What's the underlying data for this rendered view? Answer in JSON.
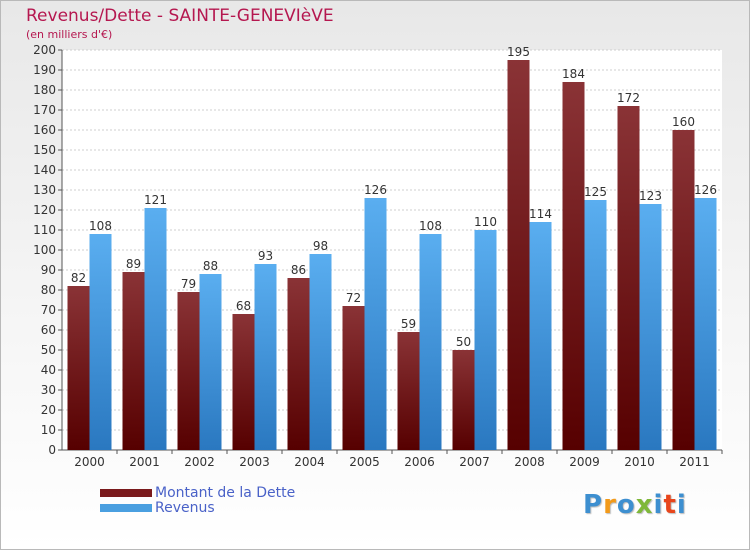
{
  "title": "Revenus/Dette - SAINTE-GENEVIèVE",
  "subtitle": "(en milliers d'€)",
  "colors": {
    "dette": "#7a1a1c",
    "revenus": "#4a9fe0",
    "title": "#b5174f",
    "legend_text": "#4a62c8"
  },
  "legend": {
    "dette_label": "Montant de la Dette",
    "revenus_label": "Revenus"
  },
  "logo": {
    "text": "Proxiti",
    "letter_colors": [
      "#3d8fd0",
      "#f29a1a",
      "#3d8fd0",
      "#7fb83a",
      "#3d8fd0",
      "#e8461c",
      "#3d8fd0"
    ]
  },
  "chart_data": {
    "type": "bar",
    "categories": [
      "2000",
      "2001",
      "2002",
      "2003",
      "2004",
      "2005",
      "2006",
      "2007",
      "2008",
      "2009",
      "2010",
      "2011"
    ],
    "series": [
      {
        "name": "Montant de la Dette",
        "values": [
          82,
          89,
          79,
          68,
          86,
          72,
          59,
          50,
          195,
          184,
          172,
          160
        ]
      },
      {
        "name": "Revenus",
        "values": [
          108,
          121,
          88,
          93,
          98,
          126,
          108,
          110,
          114,
          125,
          123,
          126
        ]
      }
    ],
    "ylim": [
      0,
      200
    ],
    "ytick_step": 10,
    "grid": true
  }
}
